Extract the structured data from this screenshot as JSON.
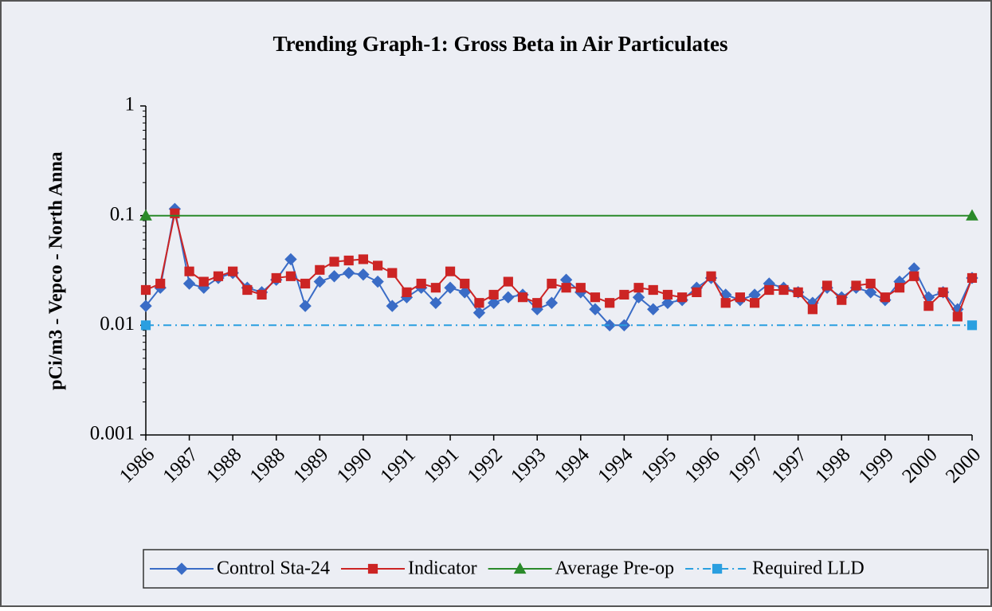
{
  "chart_data": {
    "type": "line",
    "title": "Trending Graph-1: Gross Beta in Air Particulates",
    "y_label": "pCi/m3 - Vepco - North Anna",
    "y_scale": "log",
    "ylim": [
      0.001,
      1
    ],
    "yticks": [
      1,
      0.1,
      0.01,
      0.001
    ],
    "grid": false,
    "legend": "bottom",
    "categories": [
      "1986",
      null,
      null,
      "1987",
      null,
      null,
      "1988",
      null,
      null,
      "1988",
      null,
      null,
      "1989",
      null,
      null,
      "1990",
      null,
      null,
      "1991",
      null,
      null,
      "1991",
      null,
      null,
      "1992",
      null,
      null,
      "1993",
      null,
      null,
      "1994",
      null,
      null,
      "1994",
      null,
      null,
      "1995",
      null,
      null,
      "1996",
      null,
      null,
      "1997",
      null,
      null,
      "1997",
      null,
      null,
      "1998",
      null,
      null,
      "1999",
      null,
      null,
      "2000",
      null,
      null,
      "2000"
    ],
    "series": [
      {
        "name": "Control Sta-24",
        "color": "#3a6cc6",
        "marker": "diamond",
        "markers": "all",
        "values": [
          0.015,
          0.022,
          0.115,
          0.024,
          0.022,
          0.027,
          0.03,
          0.022,
          0.02,
          0.026,
          0.04,
          0.015,
          0.025,
          0.028,
          0.03,
          0.029,
          0.025,
          0.015,
          0.018,
          0.022,
          0.016,
          0.022,
          0.02,
          0.013,
          0.016,
          0.018,
          0.019,
          0.014,
          0.016,
          0.026,
          0.02,
          0.014,
          0.01,
          0.01,
          0.018,
          0.014,
          0.016,
          0.017,
          0.022,
          0.027,
          0.019,
          0.017,
          0.019,
          0.024,
          0.022,
          0.02,
          0.016,
          0.022,
          0.018,
          0.022,
          0.02,
          0.017,
          0.025,
          0.033,
          0.018,
          0.02,
          0.014,
          0.027
        ]
      },
      {
        "name": "Indicator",
        "color": "#cc2424",
        "marker": "square",
        "markers": "all",
        "values": [
          0.021,
          0.024,
          0.105,
          0.031,
          0.025,
          0.028,
          0.031,
          0.021,
          0.019,
          0.027,
          0.028,
          0.024,
          0.032,
          0.038,
          0.039,
          0.04,
          0.035,
          0.03,
          0.02,
          0.024,
          0.022,
          0.031,
          0.024,
          0.016,
          0.019,
          0.025,
          0.018,
          0.016,
          0.024,
          0.022,
          0.022,
          0.018,
          0.016,
          0.019,
          0.022,
          0.021,
          0.019,
          0.018,
          0.02,
          0.028,
          0.016,
          0.018,
          0.016,
          0.021,
          0.021,
          0.02,
          0.014,
          0.023,
          0.017,
          0.023,
          0.024,
          0.018,
          0.022,
          0.028,
          0.015,
          0.02,
          0.012,
          0.027
        ]
      },
      {
        "name": "Average Pre-op",
        "color": "#2a8a2a",
        "marker": "triangle",
        "markers": "ends",
        "values": [
          0.1,
          0.1,
          0.1,
          0.1,
          0.1,
          0.1,
          0.1,
          0.1,
          0.1,
          0.1,
          0.1,
          0.1,
          0.1,
          0.1,
          0.1,
          0.1,
          0.1,
          0.1,
          0.1,
          0.1,
          0.1,
          0.1,
          0.1,
          0.1,
          0.1,
          0.1,
          0.1,
          0.1,
          0.1,
          0.1,
          0.1,
          0.1,
          0.1,
          0.1,
          0.1,
          0.1,
          0.1,
          0.1,
          0.1,
          0.1,
          0.1,
          0.1,
          0.1,
          0.1,
          0.1,
          0.1,
          0.1,
          0.1,
          0.1,
          0.1,
          0.1,
          0.1,
          0.1,
          0.1,
          0.1,
          0.1,
          0.1,
          0.1
        ]
      },
      {
        "name": "Required LLD",
        "color": "#2a9fe0",
        "marker": "square",
        "markers": "ends",
        "dash": true,
        "values": [
          0.01,
          0.01,
          0.01,
          0.01,
          0.01,
          0.01,
          0.01,
          0.01,
          0.01,
          0.01,
          0.01,
          0.01,
          0.01,
          0.01,
          0.01,
          0.01,
          0.01,
          0.01,
          0.01,
          0.01,
          0.01,
          0.01,
          0.01,
          0.01,
          0.01,
          0.01,
          0.01,
          0.01,
          0.01,
          0.01,
          0.01,
          0.01,
          0.01,
          0.01,
          0.01,
          0.01,
          0.01,
          0.01,
          0.01,
          0.01,
          0.01,
          0.01,
          0.01,
          0.01,
          0.01,
          0.01,
          0.01,
          0.01,
          0.01,
          0.01,
          0.01,
          0.01,
          0.01,
          0.01,
          0.01,
          0.01,
          0.01,
          0.01
        ]
      }
    ]
  }
}
